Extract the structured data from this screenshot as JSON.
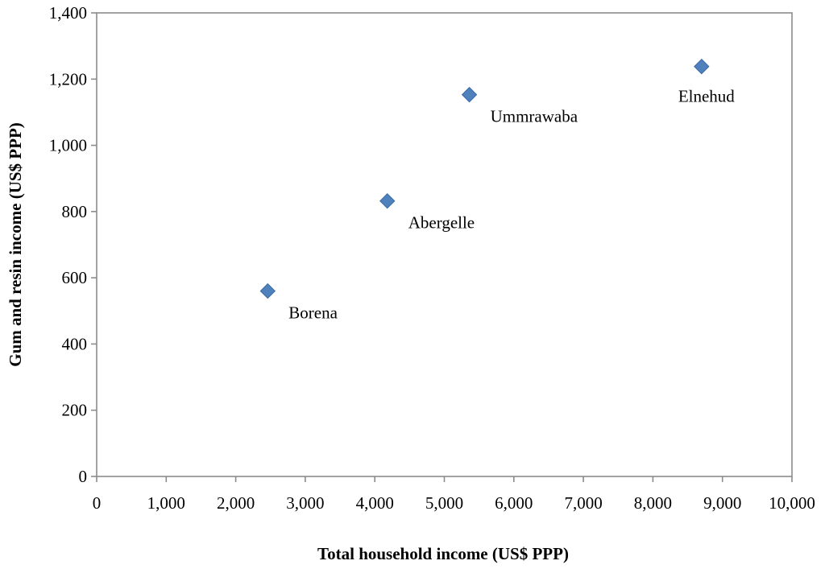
{
  "chart_data": {
    "type": "scatter",
    "title": "",
    "xlabel": "Total household income (US$ PPP)",
    "ylabel": "Gum and resin income (US$ PPP)",
    "xlim": [
      0,
      10000
    ],
    "ylim": [
      0,
      1400
    ],
    "x_ticks": [
      0,
      1000,
      2000,
      3000,
      4000,
      5000,
      6000,
      7000,
      8000,
      9000,
      10000
    ],
    "x_tick_labels": [
      "0",
      "1,000",
      "2,000",
      "3,000",
      "4,000",
      "5,000",
      "6,000",
      "7,000",
      "8,000",
      "9,000",
      "10,000"
    ],
    "y_ticks": [
      0,
      200,
      400,
      600,
      800,
      1000,
      1200,
      1400
    ],
    "y_tick_labels": [
      "0",
      "200",
      "400",
      "600",
      "800",
      "1,000",
      "1,200",
      "1,400"
    ],
    "grid": false,
    "legend": "none",
    "marker": "diamond",
    "marker_color": "#4f81bd",
    "points": [
      {
        "name": "Borena",
        "x": 2460,
        "y": 560
      },
      {
        "name": "Abergelle",
        "x": 4180,
        "y": 832
      },
      {
        "name": "Ummrawaba",
        "x": 5360,
        "y": 1153
      },
      {
        "name": "Elnehud",
        "x": 8700,
        "y": 1238
      }
    ]
  }
}
